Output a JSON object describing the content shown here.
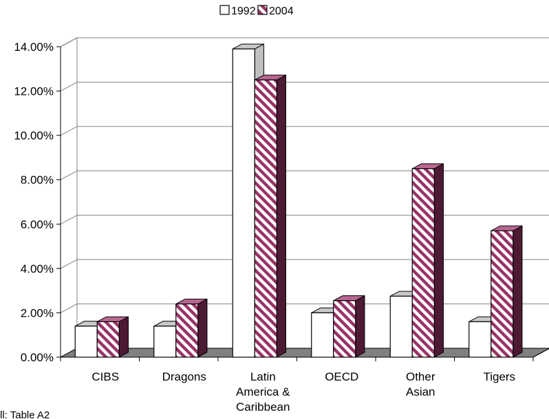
{
  "chart_data": {
    "type": "bar",
    "categories": [
      [
        "CIBS"
      ],
      [
        "Dragons"
      ],
      [
        "Latin",
        "America &",
        "Caribbean"
      ],
      [
        "OECD"
      ],
      [
        "Other",
        "Asian"
      ],
      [
        "Tigers"
      ]
    ],
    "series": [
      {
        "name": "1992",
        "values": [
          1.4,
          1.4,
          13.9,
          2.0,
          2.75,
          1.6
        ],
        "fill": "#ffffff",
        "side": "#c0c0c0"
      },
      {
        "name": "2004",
        "values": [
          1.6,
          2.4,
          12.5,
          2.55,
          8.5,
          5.7
        ],
        "fill": "#993366",
        "side": "#4d1a33"
      }
    ],
    "y_ticks": [
      "0.00%",
      "2.00%",
      "4.00%",
      "6.00%",
      "8.00%",
      "10.00%",
      "12.00%",
      "14.00%"
    ],
    "ylim": [
      0,
      14
    ],
    "legend_position": "top-center",
    "grid": true,
    "footnote": "ll: Table A2"
  }
}
